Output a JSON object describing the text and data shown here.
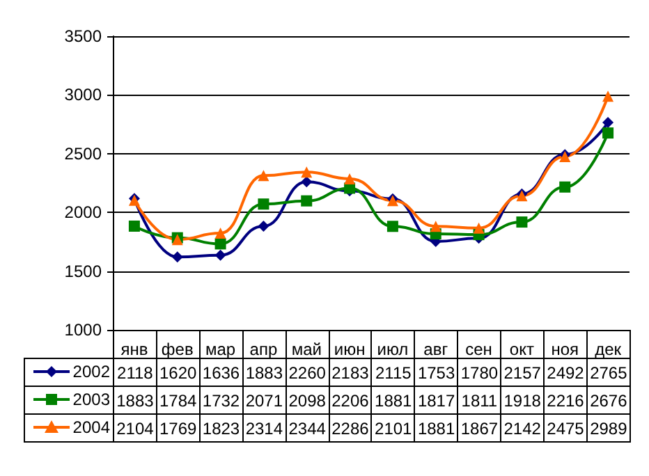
{
  "chart_data": {
    "type": "line",
    "categories": [
      "янв",
      "фев",
      "мар",
      "апр",
      "май",
      "июн",
      "июл",
      "авг",
      "сен",
      "окт",
      "ноя",
      "дек"
    ],
    "series": [
      {
        "name": "2002",
        "color": "#000080",
        "marker": "diamond",
        "values": [
          2118,
          1620,
          1636,
          1883,
          2260,
          2183,
          2115,
          1753,
          1780,
          2157,
          2492,
          2765
        ]
      },
      {
        "name": "2003",
        "color": "#008000",
        "marker": "square",
        "values": [
          1883,
          1784,
          1732,
          2071,
          2098,
          2206,
          1881,
          1817,
          1811,
          1918,
          2216,
          2676
        ]
      },
      {
        "name": "2004",
        "color": "#ff6600",
        "marker": "triangle",
        "values": [
          2104,
          1769,
          1823,
          2314,
          2344,
          2286,
          2101,
          1881,
          1867,
          2142,
          2475,
          2989
        ]
      }
    ],
    "ylim": [
      1000,
      3500
    ],
    "yticks": [
      1000,
      1500,
      2000,
      2500,
      3000,
      3500
    ],
    "grid": "y",
    "legend": "bottom",
    "data_labels": true
  }
}
